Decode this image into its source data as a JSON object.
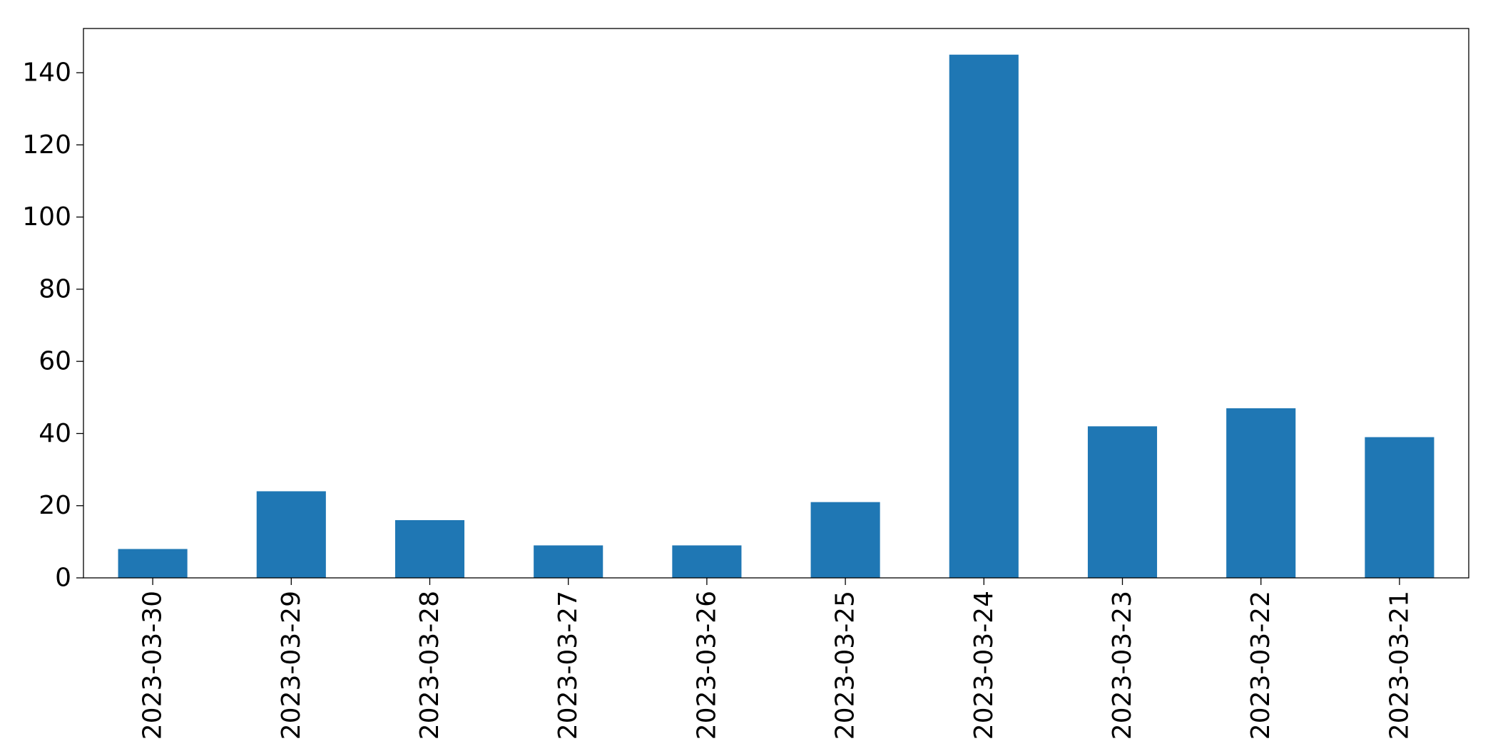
{
  "chart_data": {
    "type": "bar",
    "title": "",
    "xlabel": "",
    "ylabel": "",
    "categories": [
      "2023-03-30",
      "2023-03-29",
      "2023-03-28",
      "2023-03-27",
      "2023-03-26",
      "2023-03-25",
      "2023-03-24",
      "2023-03-23",
      "2023-03-22",
      "2023-03-21"
    ],
    "values": [
      8,
      24,
      16,
      9,
      9,
      21,
      145,
      42,
      47,
      39
    ],
    "ylim": [
      0,
      152.25
    ],
    "yticks": [
      0,
      20,
      40,
      60,
      80,
      100,
      120,
      140
    ],
    "grid": false,
    "legend": "none",
    "colors": {
      "bar": "#1f77b4",
      "axis": "#000000",
      "background": "#ffffff"
    }
  }
}
